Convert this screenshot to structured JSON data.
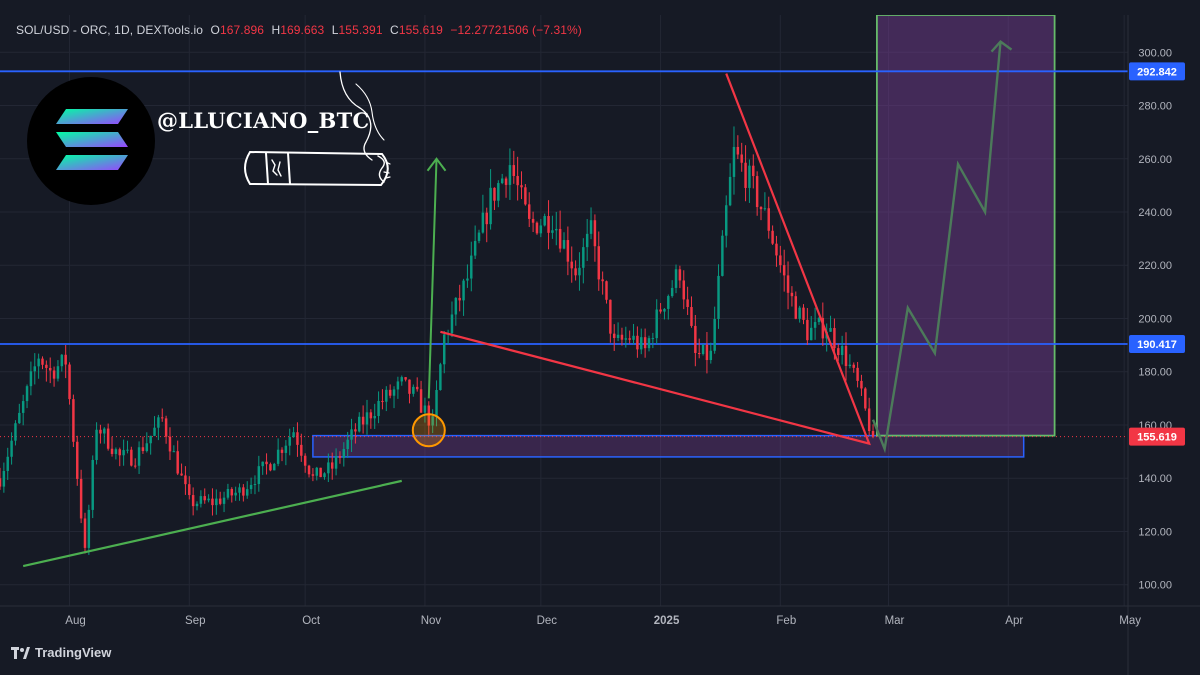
{
  "header": {
    "symbol": "SOL/USD - ORC, 1D, DEXTools.io",
    "open_label": "O",
    "open": "167.896",
    "high_label": "H",
    "high": "169.663",
    "low_label": "L",
    "low": "155.391",
    "close_label": "C",
    "close": "155.619",
    "change": "−12.27721506 (−7.31%)"
  },
  "watermark": {
    "handle": "@LLUCIANO_BTC",
    "logo": "solana-logo-icon",
    "cigar": "cigar-icon"
  },
  "footer": {
    "brand": "TradingView",
    "icon": "tradingview-logo-icon"
  },
  "colors": {
    "background": "#161a25",
    "up": "#089981",
    "down": "#f23645",
    "resistance": "#2962ff",
    "triangle": "#f23645",
    "trendline": "#4caf50",
    "projection": "#4c7a5a",
    "zone": "#7b3f96"
  },
  "chart_data": {
    "type": "candlestick",
    "timeframe": "1D",
    "x_tick_labels": [
      "Aug",
      "Sep",
      "Oct",
      "Nov",
      "Dec",
      "2025",
      "Feb",
      "Mar",
      "Apr",
      "May"
    ],
    "y_tick_labels": [
      "100.00",
      "120.00",
      "140.00",
      "160.00",
      "180.00",
      "200.00",
      "220.00",
      "240.00",
      "260.00",
      "280.00",
      "300.00"
    ],
    "ylim": [
      92,
      314
    ],
    "xlim": [
      "2024-07-14",
      "2025-05-02"
    ],
    "grid": true,
    "last_price": 155.619,
    "price_labels": [
      {
        "value": 292.842,
        "label": "292.842",
        "kind": "resistance"
      },
      {
        "value": 190.417,
        "label": "190.417",
        "kind": "resistance"
      },
      {
        "value": 155.619,
        "label": "155.619",
        "kind": "last"
      }
    ],
    "candle_path": [
      [
        "2024-07-14",
        140
      ],
      [
        "2024-07-24",
        186
      ],
      [
        "2024-07-27",
        180
      ],
      [
        "2024-07-31",
        184
      ],
      [
        "2024-08-05",
        112
      ],
      [
        "2024-08-08",
        160
      ],
      [
        "2024-08-14",
        148
      ],
      [
        "2024-08-18",
        148
      ],
      [
        "2024-08-25",
        162
      ],
      [
        "2024-09-01",
        131
      ],
      [
        "2024-09-07",
        131
      ],
      [
        "2024-09-14",
        135
      ],
      [
        "2024-09-22",
        146
      ],
      [
        "2024-09-28",
        158
      ],
      [
        "2024-10-03",
        140
      ],
      [
        "2024-10-08",
        144
      ],
      [
        "2024-10-14",
        158
      ],
      [
        "2024-10-20",
        168
      ],
      [
        "2024-10-26",
        175
      ],
      [
        "2024-10-30",
        170
      ],
      [
        "2024-11-03",
        160
      ],
      [
        "2024-11-06",
        193
      ],
      [
        "2024-11-12",
        215
      ],
      [
        "2024-11-18",
        245
      ],
      [
        "2024-11-23",
        258
      ],
      [
        "2024-11-28",
        235
      ],
      [
        "2024-12-04",
        238
      ],
      [
        "2024-12-10",
        218
      ],
      [
        "2024-12-14",
        232
      ],
      [
        "2024-12-20",
        190
      ],
      [
        "2024-12-24",
        193
      ],
      [
        "2024-12-28",
        188
      ],
      [
        "2025-01-01",
        204
      ],
      [
        "2025-01-06",
        218
      ],
      [
        "2025-01-10",
        186
      ],
      [
        "2025-01-14",
        186
      ],
      [
        "2025-01-18",
        240
      ],
      [
        "2025-01-20",
        262
      ],
      [
        "2025-01-24",
        252
      ],
      [
        "2025-01-29",
        235
      ],
      [
        "2025-02-03",
        210
      ],
      [
        "2025-02-08",
        195
      ],
      [
        "2025-02-13",
        197
      ],
      [
        "2025-02-18",
        185
      ],
      [
        "2025-02-21",
        175
      ],
      [
        "2025-02-25",
        155
      ]
    ],
    "resistance_lines": [
      292.842,
      190.417
    ],
    "triangle": [
      [
        "2025-01-18",
        292
      ],
      [
        "2025-02-24",
        153
      ],
      [
        "2024-11-05",
        195
      ]
    ],
    "support_trendline": [
      [
        "2024-07-20",
        107
      ],
      [
        "2024-10-26",
        139
      ]
    ],
    "support_zone": {
      "x0": "2024-10-03",
      "x1": "2025-04-05",
      "y0": 148,
      "y1": 156
    },
    "target_zone": {
      "x0": "2025-02-26",
      "x1": "2025-04-13",
      "y0": 156,
      "y1": 314
    },
    "projection_path": [
      [
        "2025-02-25",
        162
      ],
      [
        "2025-02-28",
        151
      ],
      [
        "2025-03-06",
        204
      ],
      [
        "2025-03-13",
        187
      ],
      [
        "2025-03-19",
        258
      ],
      [
        "2025-03-26",
        240
      ],
      [
        "2025-03-30",
        304
      ]
    ],
    "impulse_arrow": [
      [
        "2024-11-02",
        170
      ],
      [
        "2024-11-04",
        260
      ]
    ],
    "highlight_circle": {
      "x": "2024-11-02",
      "y": 158
    }
  }
}
